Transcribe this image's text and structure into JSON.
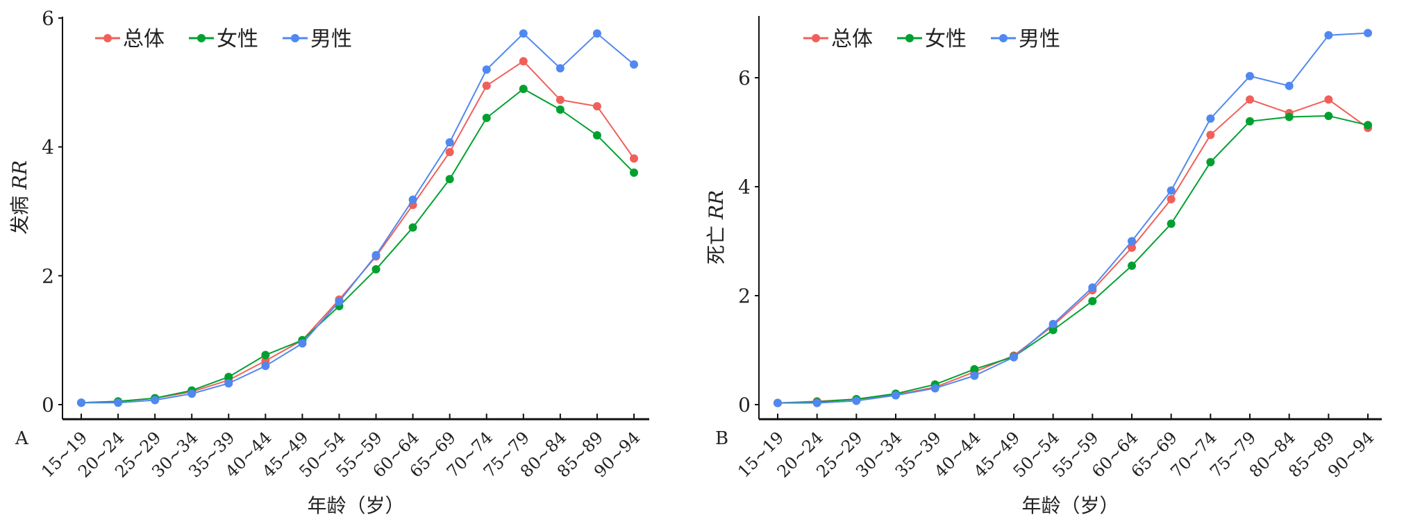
{
  "chart_data": [
    {
      "type": "line",
      "panel_label": "A",
      "ylabel_cn": "发病",
      "ylabel_it": "RR",
      "xlabel": "年龄（岁）",
      "ylim": [
        0,
        6
      ],
      "yticks": [
        0,
        2,
        4,
        6
      ],
      "categories": [
        "15~19",
        "20~24",
        "25~29",
        "30~34",
        "35~39",
        "40~44",
        "45~49",
        "50~54",
        "55~59",
        "60~64",
        "65~69",
        "70~74",
        "75~79",
        "80~84",
        "85~89",
        "90~94"
      ],
      "series": [
        {
          "name": "总体",
          "color": "#f0605a",
          "values": [
            0.03,
            0.05,
            0.1,
            0.2,
            0.38,
            0.68,
            1.0,
            1.63,
            2.3,
            3.1,
            3.92,
            4.95,
            5.33,
            4.73,
            4.63,
            3.82
          ]
        },
        {
          "name": "女性",
          "color": "#00a030",
          "values": [
            0.03,
            0.05,
            0.1,
            0.22,
            0.43,
            0.77,
            1.0,
            1.53,
            2.1,
            2.75,
            3.5,
            4.45,
            4.9,
            4.58,
            4.18,
            3.6
          ]
        },
        {
          "name": "男性",
          "color": "#5088f0",
          "values": [
            0.03,
            0.03,
            0.07,
            0.17,
            0.33,
            0.6,
            0.95,
            1.6,
            2.32,
            3.18,
            4.07,
            5.2,
            5.76,
            5.22,
            5.76,
            5.28
          ]
        }
      ],
      "legend": "top-left"
    },
    {
      "type": "line",
      "panel_label": "B",
      "ylabel_cn": "死亡",
      "ylabel_it": "RR",
      "xlabel": "年龄（岁）",
      "ylim": [
        0,
        7
      ],
      "yticks": [
        0,
        2,
        4,
        6
      ],
      "categories": [
        "15~19",
        "20~24",
        "25~29",
        "30~34",
        "35~39",
        "40~44",
        "45~49",
        "50~54",
        "55~59",
        "60~64",
        "65~69",
        "70~74",
        "75~79",
        "80~84",
        "85~89",
        "90~94"
      ],
      "series": [
        {
          "name": "总体",
          "color": "#f0605a",
          "values": [
            0.03,
            0.06,
            0.1,
            0.18,
            0.32,
            0.6,
            0.9,
            1.45,
            2.1,
            2.88,
            3.77,
            4.95,
            5.6,
            5.35,
            5.6,
            5.08
          ]
        },
        {
          "name": "女性",
          "color": "#00a030",
          "values": [
            0.03,
            0.05,
            0.1,
            0.2,
            0.37,
            0.65,
            0.88,
            1.37,
            1.9,
            2.55,
            3.32,
            4.45,
            5.2,
            5.28,
            5.3,
            5.13
          ]
        },
        {
          "name": "男性",
          "color": "#5088f0",
          "values": [
            0.03,
            0.03,
            0.07,
            0.17,
            0.3,
            0.53,
            0.87,
            1.48,
            2.15,
            3.0,
            3.93,
            5.25,
            6.03,
            5.85,
            6.78,
            6.82
          ]
        }
      ],
      "legend": "top-left"
    }
  ]
}
